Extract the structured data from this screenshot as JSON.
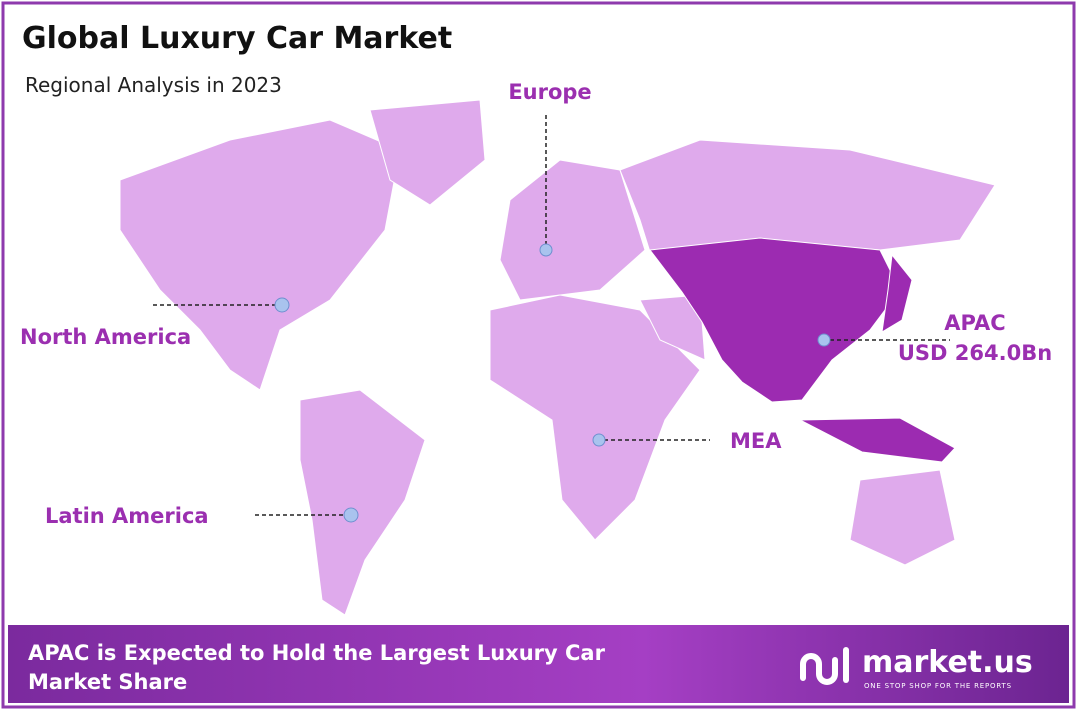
{
  "header": {
    "title": "Global Luxury Car Market",
    "subtitle": "Regional Analysis in 2023"
  },
  "map": {
    "regions": [
      {
        "label": "Europe"
      },
      {
        "label": "North America"
      },
      {
        "label": "Latin America"
      },
      {
        "label": "MEA"
      },
      {
        "label": "APAC",
        "value": "USD 264.0Bn"
      }
    ]
  },
  "footer": {
    "text_lines": [
      "APAC is Expected to Hold the Largest Luxury Car",
      "Market Share"
    ],
    "logo": "market.us",
    "tagline": "ONE STOP SHOP FOR THE REPORTS"
  }
}
